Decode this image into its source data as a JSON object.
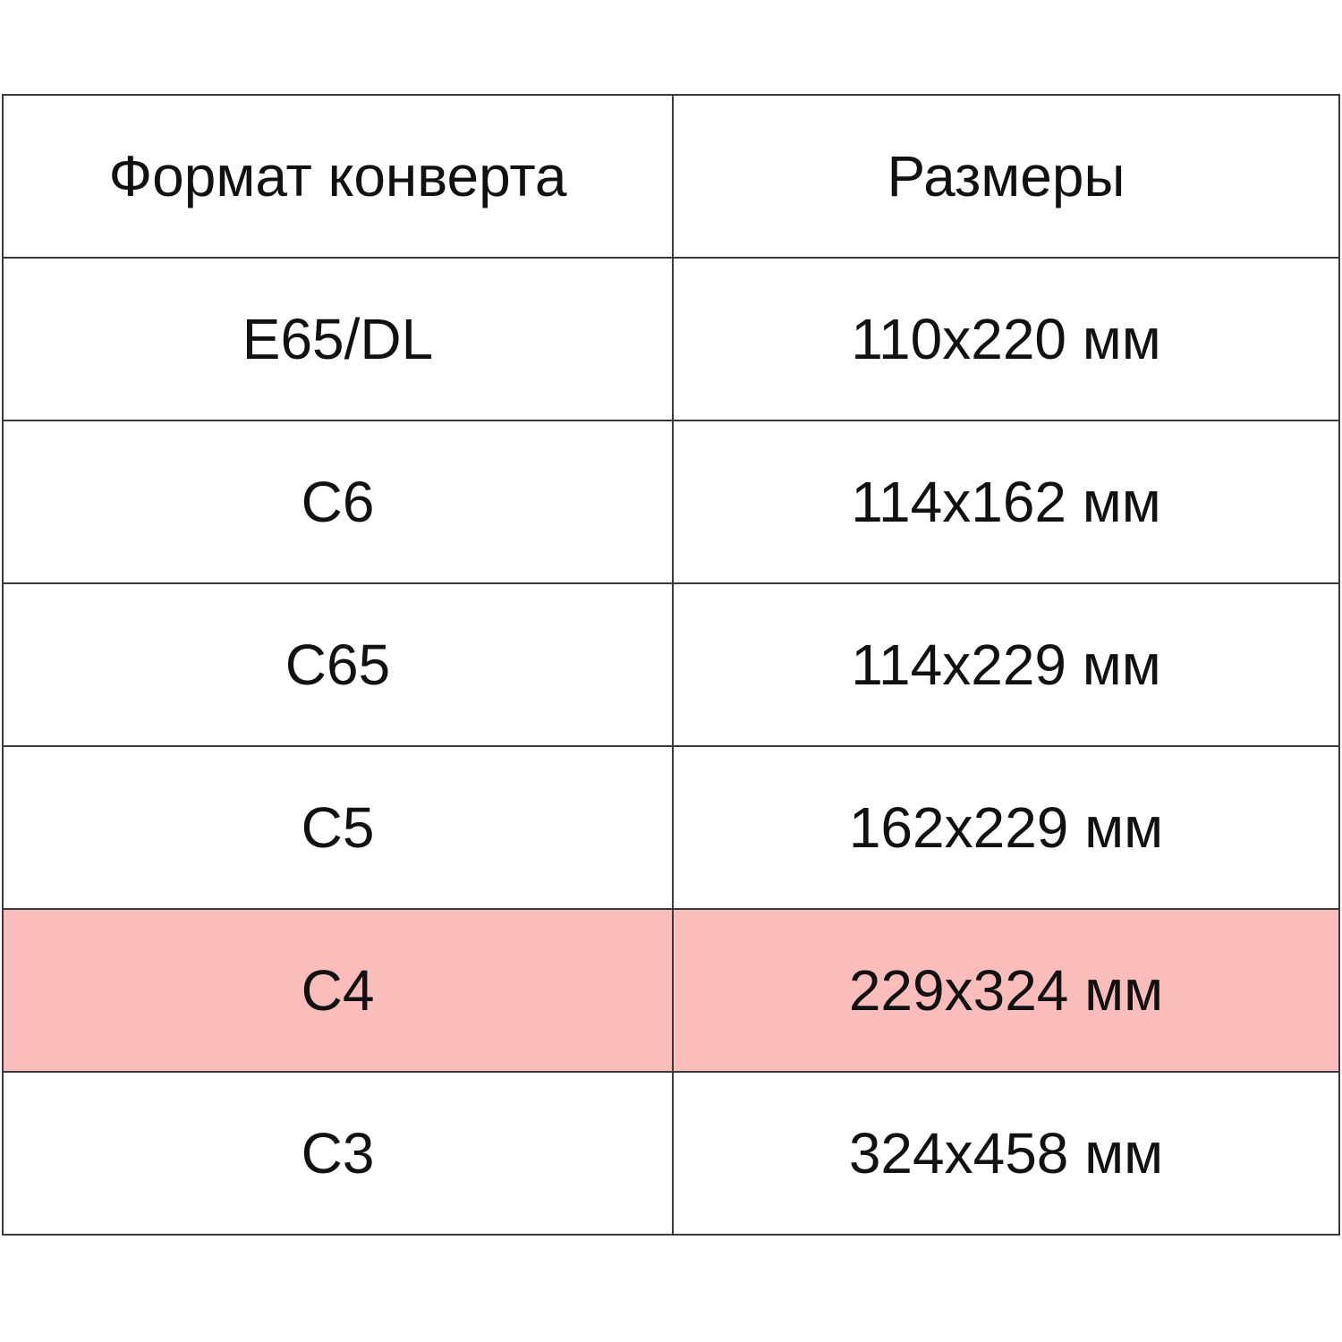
{
  "table": {
    "headers": [
      "Формат конверта",
      "Размеры"
    ],
    "rows": [
      {
        "format": "E65/DL",
        "size": "110x220 мм",
        "highlighted": false
      },
      {
        "format": "C6",
        "size": "114x162 мм",
        "highlighted": false
      },
      {
        "format": "C65",
        "size": "114x229 мм",
        "highlighted": false
      },
      {
        "format": "C5",
        "size": "162x229 мм",
        "highlighted": false
      },
      {
        "format": "C4",
        "size": "229x324 мм",
        "highlighted": true
      },
      {
        "format": "C3",
        "size": "324x458 мм",
        "highlighted": false
      }
    ],
    "highlight_color": "#fbbcbc"
  }
}
